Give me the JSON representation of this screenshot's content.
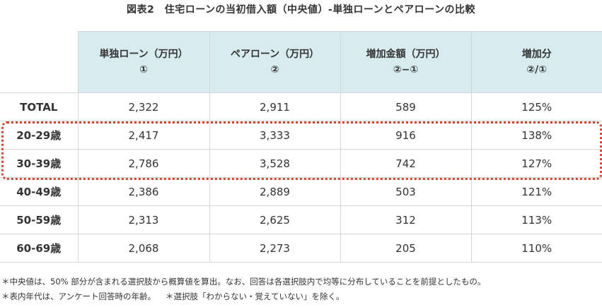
{
  "title": "図表2　住宅ローンの当初借入額（中央値）-単独ローンとペアローンの比較",
  "table": {
    "columns": [
      [
        "単独ローン（万円）",
        "①"
      ],
      [
        "ペアローン（万円）",
        "②"
      ],
      [
        "増加金額（万円）",
        "②−①"
      ],
      [
        "増加分",
        "②/①"
      ]
    ],
    "rows": [
      [
        "TOTAL",
        "2,322",
        "2,911",
        "589",
        "125%"
      ],
      [
        "20-29歳",
        "2,417",
        "3,333",
        "916",
        "138%"
      ],
      [
        "30-39歳",
        "2,786",
        "3,528",
        "742",
        "127%"
      ],
      [
        "40-49歳",
        "2,386",
        "2,889",
        "503",
        "121%"
      ],
      [
        "50-59歳",
        "2,313",
        "2,625",
        "312",
        "113%"
      ],
      [
        "60-69歳",
        "2,068",
        "2,273",
        "205",
        "110%"
      ]
    ]
  },
  "notes": [
    [
      "＊中央値は、50% 部分が含まれる選択肢から概算値を算出。なお、回答は各選択肢内で均等に分布していることを前提としたもの。"
    ],
    [
      "＊表内年代は、アンケート回答時の年齢。",
      "＊選択肢「わからない・覚えていない」を除く。"
    ]
  ]
}
